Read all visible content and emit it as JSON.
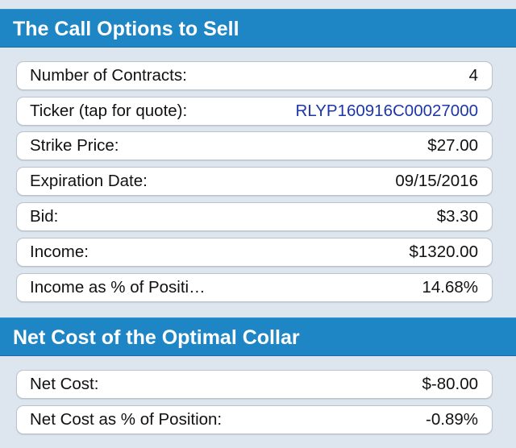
{
  "call_section": {
    "title": "The Call Options to Sell",
    "rows": [
      {
        "label": "Number of Contracts:",
        "value": "4"
      },
      {
        "label": "Ticker (tap for quote):",
        "value": "RLYP160916C00027000"
      },
      {
        "label": "Strike Price:",
        "value": "$27.00"
      },
      {
        "label": "Expiration Date:",
        "value": "09/15/2016"
      },
      {
        "label": "Bid:",
        "value": "$3.30"
      },
      {
        "label": "Income:",
        "value": "$1320.00"
      },
      {
        "label": "Income as % of Positi…",
        "value": "14.68%"
      }
    ]
  },
  "net_cost_section": {
    "title": "Net Cost of the Optimal Collar",
    "rows": [
      {
        "label": "Net Cost:",
        "value": "$-80.00"
      },
      {
        "label": "Net Cost as % of Position:",
        "value": "-0.89%"
      }
    ]
  },
  "colors": {
    "header_bg": "#1f86c5",
    "page_bg": "#dde6ef",
    "link": "#1d36a8"
  }
}
